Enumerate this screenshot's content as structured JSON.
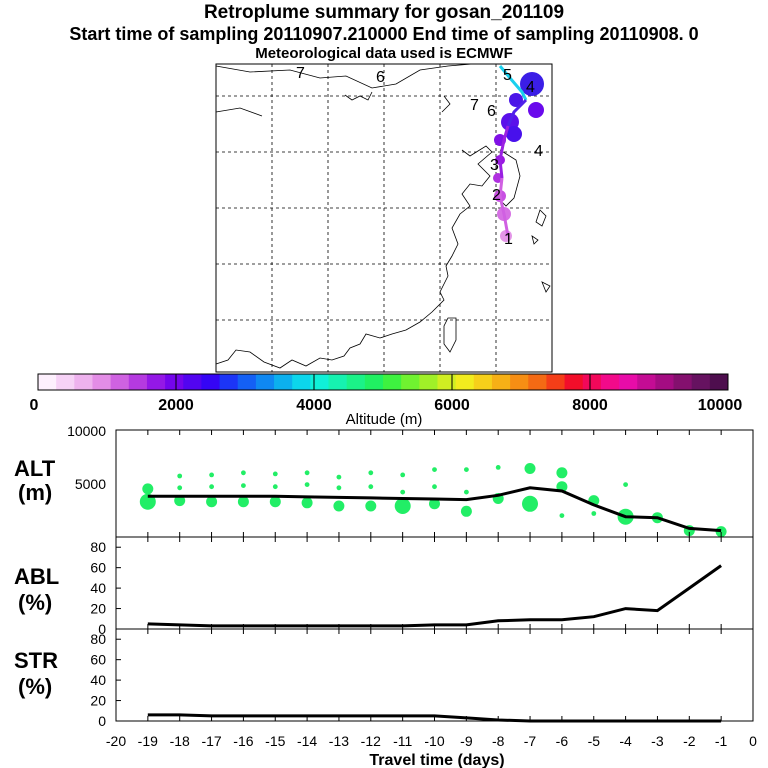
{
  "header": {
    "title": "Retroplume summary for gosan_201109",
    "sampling_line": "Start time of sampling 20110907.210000     End time of sampling 20110908.     0",
    "met_line": "Meteorological data used is ECMWF"
  },
  "chart_data": [
    {
      "type": "map",
      "description_labels": [
        "7",
        "6",
        "5",
        "4",
        "3",
        "2",
        "1"
      ],
      "track_labels": [
        {
          "label": "7",
          "lon_lat": "NW corner"
        },
        {
          "label": "6",
          "lon_lat": "N edge"
        },
        {
          "label": "5",
          "lon_lat": "N"
        },
        {
          "label": "4",
          "lon_lat": "NE"
        },
        {
          "label": "1",
          "lon_lat": "S"
        }
      ]
    },
    {
      "type": "colorbar",
      "xlabel": "Altitude (m)",
      "range": [
        0,
        10000
      ],
      "ticks": [
        "0",
        "2000",
        "4000",
        "6000",
        "8000",
        "10000"
      ],
      "colors": [
        "#fdf0fd",
        "#f6d2f6",
        "#eeb2ee",
        "#e38de6",
        "#cf62e1",
        "#b53ae0",
        "#9418e6",
        "#7405ec",
        "#5205f0",
        "#3505f5",
        "#1c35f7",
        "#1460f5",
        "#0f88f2",
        "#0cb0ee",
        "#0cd6ec",
        "#10f0d8",
        "#16f2b0",
        "#1bf288",
        "#20f062",
        "#3ef240",
        "#70f230",
        "#a0f028",
        "#d0ee22",
        "#f2ec1e",
        "#f6d01a",
        "#f6b016",
        "#f68e14",
        "#f46a14",
        "#f43e18",
        "#f20e2a",
        "#f2085a",
        "#f20a8a",
        "#e80ca8",
        "#c40c94",
        "#a40c82",
        "#84106e",
        "#661260",
        "#4e0e4e"
      ]
    },
    {
      "type": "line",
      "panel": "ALT",
      "ylabel": "ALT\n(m)",
      "ylim": [
        0,
        10000
      ],
      "ytick_labels": [
        "5000",
        "10000"
      ],
      "x": [
        -19,
        -18,
        -17,
        -16,
        -15,
        -14,
        -13,
        -12,
        -11,
        -10,
        -9,
        -8,
        -7,
        -6,
        -5,
        -4,
        -3,
        -2,
        -1
      ],
      "values": [
        3800,
        3800,
        3800,
        3800,
        3800,
        3750,
        3700,
        3650,
        3600,
        3550,
        3500,
        3900,
        4600,
        4300,
        3000,
        1900,
        1800,
        800,
        600
      ],
      "points": [
        {
          "x": -19,
          "y": 4500,
          "s": "m"
        },
        {
          "x": -19,
          "y": 3300,
          "s": "l"
        },
        {
          "x": -18,
          "y": 5700,
          "s": "s"
        },
        {
          "x": -18,
          "y": 4600,
          "s": "s"
        },
        {
          "x": -18,
          "y": 3400,
          "s": "m"
        },
        {
          "x": -17,
          "y": 5800,
          "s": "s"
        },
        {
          "x": -17,
          "y": 4700,
          "s": "s"
        },
        {
          "x": -17,
          "y": 3300,
          "s": "m"
        },
        {
          "x": -16,
          "y": 6000,
          "s": "s"
        },
        {
          "x": -16,
          "y": 4800,
          "s": "s"
        },
        {
          "x": -16,
          "y": 3300,
          "s": "m"
        },
        {
          "x": -15,
          "y": 5900,
          "s": "s"
        },
        {
          "x": -15,
          "y": 4700,
          "s": "s"
        },
        {
          "x": -15,
          "y": 3300,
          "s": "m"
        },
        {
          "x": -14,
          "y": 6000,
          "s": "s"
        },
        {
          "x": -14,
          "y": 4900,
          "s": "s"
        },
        {
          "x": -14,
          "y": 3200,
          "s": "m"
        },
        {
          "x": -13,
          "y": 5600,
          "s": "s"
        },
        {
          "x": -13,
          "y": 4600,
          "s": "s"
        },
        {
          "x": -13,
          "y": 2900,
          "s": "m"
        },
        {
          "x": -12,
          "y": 6000,
          "s": "s"
        },
        {
          "x": -12,
          "y": 4700,
          "s": "s"
        },
        {
          "x": -12,
          "y": 2900,
          "s": "m"
        },
        {
          "x": -11,
          "y": 5800,
          "s": "s"
        },
        {
          "x": -11,
          "y": 4200,
          "s": "s"
        },
        {
          "x": -11,
          "y": 2900,
          "s": "l"
        },
        {
          "x": -10,
          "y": 6300,
          "s": "s"
        },
        {
          "x": -10,
          "y": 4700,
          "s": "s"
        },
        {
          "x": -10,
          "y": 3100,
          "s": "m"
        },
        {
          "x": -9,
          "y": 6300,
          "s": "s"
        },
        {
          "x": -9,
          "y": 4200,
          "s": "s"
        },
        {
          "x": -9,
          "y": 2400,
          "s": "m"
        },
        {
          "x": -8,
          "y": 6500,
          "s": "s"
        },
        {
          "x": -8,
          "y": 3600,
          "s": "m"
        },
        {
          "x": -7,
          "y": 6400,
          "s": "m"
        },
        {
          "x": -7,
          "y": 3100,
          "s": "l"
        },
        {
          "x": -6,
          "y": 6000,
          "s": "m"
        },
        {
          "x": -6,
          "y": 4700,
          "s": "m"
        },
        {
          "x": -6,
          "y": 2000,
          "s": "s"
        },
        {
          "x": -5,
          "y": 3400,
          "s": "m"
        },
        {
          "x": -5,
          "y": 2200,
          "s": "s"
        },
        {
          "x": -4,
          "y": 4900,
          "s": "s"
        },
        {
          "x": -4,
          "y": 1900,
          "s": "l"
        },
        {
          "x": -3,
          "y": 1800,
          "s": "m"
        },
        {
          "x": -2,
          "y": 600,
          "s": "m"
        },
        {
          "x": -1,
          "y": 500,
          "s": "m"
        }
      ],
      "point_color": "#22ee66",
      "line_color": "#000000"
    },
    {
      "type": "line",
      "panel": "ABL",
      "ylabel": "ABL\n(%)",
      "ylim": [
        0,
        90
      ],
      "ytick_labels": [
        "0",
        "20",
        "40",
        "60",
        "80"
      ],
      "x": [
        -19,
        -18,
        -17,
        -16,
        -15,
        -14,
        -13,
        -12,
        -11,
        -10,
        -9,
        -8,
        -7,
        -6,
        -5,
        -4,
        -3,
        -2,
        -1
      ],
      "values": [
        5,
        4,
        3,
        3,
        3,
        3,
        3,
        3,
        3,
        4,
        4,
        8,
        9,
        9,
        12,
        20,
        18,
        40,
        62
      ]
    },
    {
      "type": "line",
      "panel": "STR",
      "ylabel": "STR\n(%)",
      "ylim": [
        0,
        90
      ],
      "ytick_labels": [
        "0",
        "20",
        "40",
        "60",
        "80"
      ],
      "x": [
        -19,
        -18,
        -17,
        -16,
        -15,
        -14,
        -13,
        -12,
        -11,
        -10,
        -9,
        -8,
        -7,
        -6,
        -5,
        -4,
        -3,
        -2,
        -1
      ],
      "values": [
        6,
        6,
        5,
        5,
        5,
        5,
        5,
        5,
        5,
        5,
        3,
        1,
        0,
        0,
        0,
        0,
        0,
        0,
        0
      ],
      "xlabel": "Travel time (days)",
      "xtick_labels": [
        "-20",
        "-19",
        "-18",
        "-17",
        "-16",
        "-15",
        "-14",
        "-13",
        "-12",
        "-11",
        "-10",
        "-9",
        "-8",
        "-7",
        "-6",
        "-5",
        "-4",
        "-3",
        "-2",
        "-1",
        "0"
      ]
    }
  ]
}
